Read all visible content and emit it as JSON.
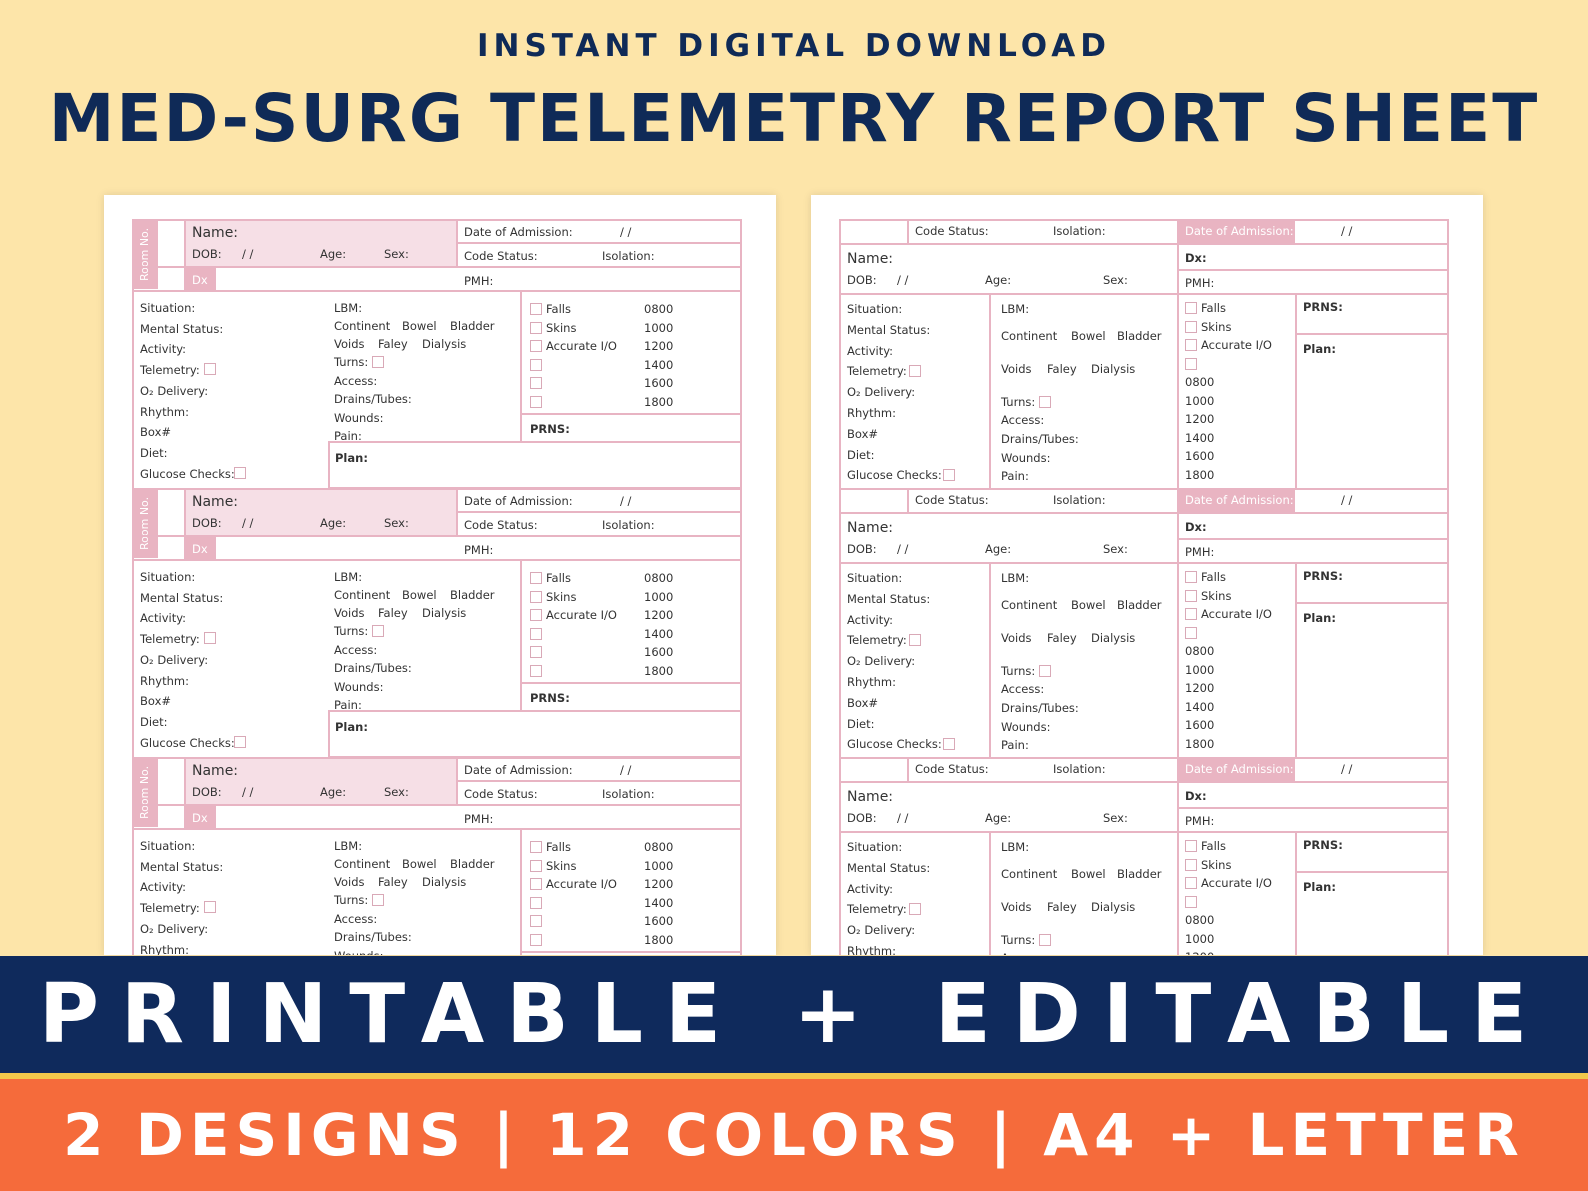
{
  "header": {
    "eyebrow": "INSTANT DIGITAL DOWNLOAD",
    "title": "MED-SURG TELEMETRY REPORT SHEET"
  },
  "sheet_a": {
    "room_label": "Room No.",
    "name": "Name:",
    "dob": "DOB:",
    "slashes": "/        /",
    "age": "Age:",
    "sex": "Sex:",
    "date_of_admission": "Date of Admission:",
    "code_status": "Code Status:",
    "isolation": "Isolation:",
    "dx": "Dx",
    "pmh": "PMH:",
    "left_fields": [
      "Situation:",
      "Mental Status:",
      "Activity:",
      "Telemetry:",
      "O₂ Delivery:",
      "Rhythm:",
      "Box#",
      "Diet:",
      "Glucose Checks:"
    ],
    "lbm": "LBM:",
    "continent": "Continent",
    "bowel": "Bowel",
    "bladder": "Bladder",
    "voids": "Voids",
    "faley": "Faley",
    "dialysis": "Dialysis",
    "turns": "Turns:",
    "access": "Access:",
    "drains": "Drains/Tubes:",
    "wounds": "Wounds:",
    "pain": "Pain:",
    "checks": [
      "Falls",
      "Skins",
      "Accurate I/O",
      "",
      "",
      ""
    ],
    "times": [
      "0800",
      "1000",
      "1200",
      "1400",
      "1600",
      "1800"
    ],
    "prns": "PRNS:",
    "plan": "Plan:"
  },
  "sheet_b": {
    "code_status": "Code Status:",
    "isolation": "Isolation:",
    "date_of_admission": "Date of Admission:",
    "slashes": "/        /",
    "name": "Name:",
    "dob": "DOB:",
    "age": "Age:",
    "sex": "Sex:",
    "dx": "Dx:",
    "pmh": "PMH:",
    "left_fields": [
      "Situation:",
      "Mental Status:",
      "Activity:",
      "Telemetry:",
      "O₂ Delivery:",
      "Rhythm:",
      "Box#",
      "Diet:",
      "Glucose Checks:"
    ],
    "lbm": "LBM:",
    "continent": "Continent",
    "bowel": "Bowel",
    "bladder": "Bladder",
    "voids": "Voids",
    "faley": "Faley",
    "dialysis": "Dialysis",
    "turns": "Turns:",
    "access": "Access:",
    "drains": "Drains/Tubes:",
    "wounds": "Wounds:",
    "pain": "Pain:",
    "checks": [
      "Falls",
      "Skins",
      "Accurate I/O",
      ""
    ],
    "times": [
      "0800",
      "1000",
      "1200",
      "1400",
      "1600",
      "1800"
    ],
    "prns": "PRNS:",
    "plan": "Plan:"
  },
  "footer": {
    "band1": "PRINTABLE + EDITABLE",
    "band2": "2 DESIGNS | 12 COLORS | A4 + LETTER"
  },
  "colors": {
    "background": "#fde5a9",
    "navy": "#0f2a5c",
    "orange": "#f56b3b",
    "pink_line": "#e8b4c3",
    "pink_fill": "#f6dfe6"
  }
}
